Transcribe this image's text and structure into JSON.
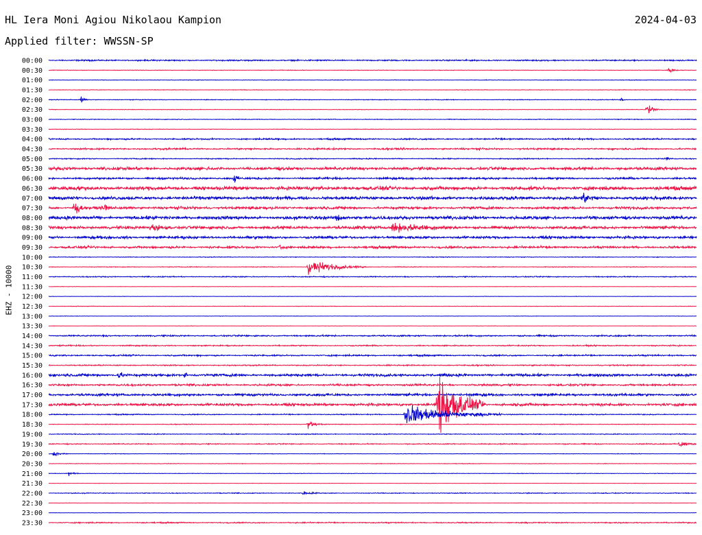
{
  "header": {
    "station": "HL Iera Moni Agiou Nikolaou Kampion",
    "date": "2024-04-03",
    "filter": "Applied filter: WWSSN-SP"
  },
  "chart_data": {
    "type": "line",
    "title": "HL Iera Moni Agiou Nikolaou Kampion",
    "ylabel": "EHZ - 10000",
    "row_interval_minutes": 30,
    "rows": [
      "00:00",
      "00:30",
      "01:00",
      "01:30",
      "02:00",
      "02:30",
      "03:00",
      "03:30",
      "04:00",
      "04:30",
      "05:00",
      "05:30",
      "06:00",
      "06:30",
      "07:00",
      "07:30",
      "08:00",
      "08:30",
      "09:00",
      "09:30",
      "10:00",
      "10:30",
      "11:00",
      "11:30",
      "12:00",
      "12:30",
      "13:00",
      "13:30",
      "14:00",
      "14:30",
      "15:00",
      "15:30",
      "16:00",
      "16:30",
      "17:00",
      "17:30",
      "18:00",
      "18:30",
      "19:00",
      "19:30",
      "20:00",
      "20:30",
      "21:00",
      "21:30",
      "22:00",
      "22:30",
      "23:00",
      "23:30"
    ],
    "trace_colors": [
      "#0000cc",
      "#ee1144"
    ],
    "noise_level": [
      0.8,
      0.3,
      0.3,
      0.3,
      0.4,
      0.3,
      0.4,
      0.3,
      0.9,
      1.0,
      0.6,
      1.8,
      1.2,
      2.2,
      2.0,
      1.6,
      2.0,
      1.8,
      1.6,
      1.4,
      0.4,
      0.4,
      0.6,
      0.2,
      0.2,
      0.3,
      0.2,
      0.2,
      0.9,
      0.7,
      0.9,
      0.7,
      1.6,
      1.2,
      1.5,
      1.6,
      0.6,
      0.4,
      0.5,
      0.6,
      0.3,
      0.3,
      0.3,
      0.2,
      0.5,
      0.2,
      0.2,
      0.7
    ],
    "events": [
      {
        "row": "00:30",
        "minute": 28.7,
        "amplitude": 4,
        "duration_min": 0.5
      },
      {
        "row": "02:00",
        "minute": 1.5,
        "amplitude": 4,
        "duration_min": 0.3
      },
      {
        "row": "02:00",
        "minute": 26.5,
        "amplitude": 3,
        "duration_min": 0.2
      },
      {
        "row": "02:30",
        "minute": 27.7,
        "amplitude": 9,
        "duration_min": 0.6
      },
      {
        "row": "05:00",
        "minute": 28.5,
        "amplitude": 4,
        "duration_min": 0.4
      },
      {
        "row": "06:00",
        "minute": 8.6,
        "amplitude": 6,
        "duration_min": 0.3
      },
      {
        "row": "07:00",
        "minute": 24.7,
        "amplitude": 6,
        "duration_min": 0.8
      },
      {
        "row": "07:30",
        "minute": 1.2,
        "amplitude": 16,
        "duration_min": 0.4
      },
      {
        "row": "07:30",
        "minute": 2.6,
        "amplitude": 6,
        "duration_min": 0.3
      },
      {
        "row": "08:00",
        "minute": 13.3,
        "amplitude": 5,
        "duration_min": 0.6
      },
      {
        "row": "08:30",
        "minute": 4.7,
        "amplitude": 5,
        "duration_min": 1.2
      },
      {
        "row": "08:30",
        "minute": 15.9,
        "amplitude": 5,
        "duration_min": 3.0
      },
      {
        "row": "09:30",
        "minute": 10.7,
        "amplitude": 6,
        "duration_min": 0.2
      },
      {
        "row": "10:30",
        "minute": 12.0,
        "amplitude": 9,
        "duration_min": 2.7
      },
      {
        "row": "16:00",
        "minute": 3.2,
        "amplitude": 5,
        "duration_min": 0.5
      },
      {
        "row": "16:00",
        "minute": 6.3,
        "amplitude": 6,
        "duration_min": 0.2
      },
      {
        "row": "17:30",
        "minute": 18.0,
        "amplitude": 46,
        "duration_min": 2.2
      },
      {
        "row": "18:00",
        "minute": 16.5,
        "amplitude": 12,
        "duration_min": 4.5
      },
      {
        "row": "18:30",
        "minute": 12.0,
        "amplitude": 4,
        "duration_min": 0.8
      },
      {
        "row": "19:30",
        "minute": 29.2,
        "amplitude": 4,
        "duration_min": 1.0
      },
      {
        "row": "20:00",
        "minute": 0.2,
        "amplitude": 3,
        "duration_min": 0.8
      },
      {
        "row": "21:00",
        "minute": 0.9,
        "amplitude": 3,
        "duration_min": 0.5
      },
      {
        "row": "22:00",
        "minute": 11.8,
        "amplitude": 2,
        "duration_min": 0.8
      }
    ]
  }
}
